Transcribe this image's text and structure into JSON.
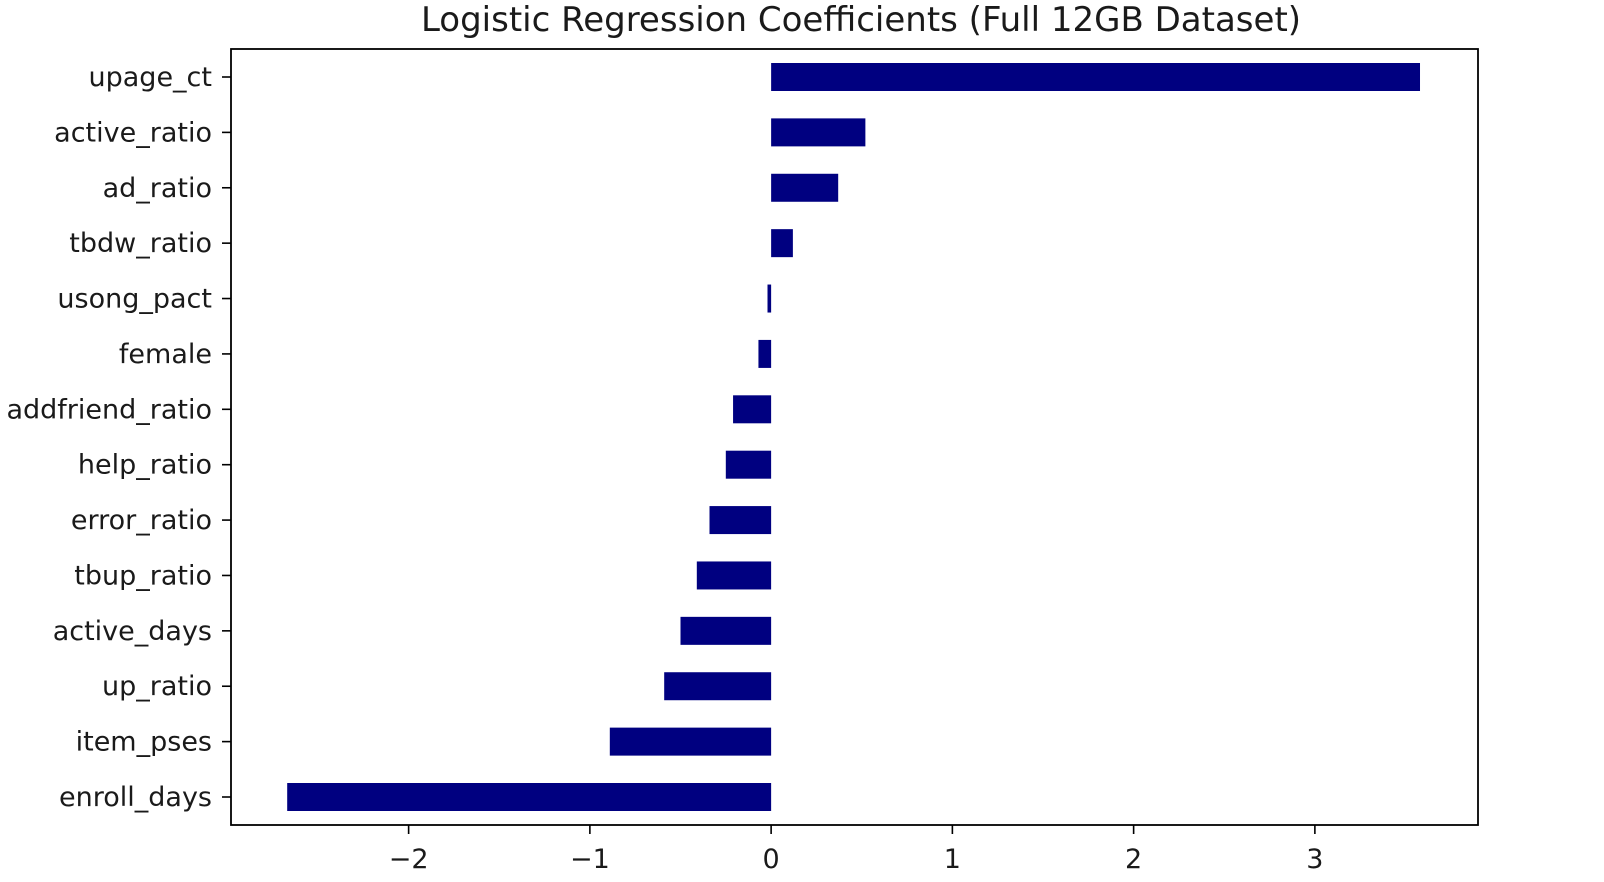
{
  "chart_data": {
    "type": "bar",
    "orientation": "horizontal",
    "title": "Logistic Regression Coefficients (Full 12GB Dataset)",
    "xlabel": "",
    "ylabel": "",
    "categories": [
      "upage_ct",
      "active_ratio",
      "ad_ratio",
      "tbdw_ratio",
      "usong_pact",
      "female",
      "addfriend_ratio",
      "help_ratio",
      "error_ratio",
      "tbup_ratio",
      "active_days",
      "up_ratio",
      "item_pses",
      "enroll_days"
    ],
    "values": [
      3.58,
      0.52,
      0.37,
      0.12,
      -0.02,
      -0.07,
      -0.21,
      -0.25,
      -0.34,
      -0.41,
      -0.5,
      -0.59,
      -0.89,
      -2.67
    ],
    "xlim": [
      -2.98,
      3.9
    ],
    "x_ticks": [
      -2,
      -1,
      0,
      1,
      2,
      3
    ],
    "x_tick_labels": [
      "−2",
      "−1",
      "0",
      "1",
      "2",
      "3"
    ],
    "bar_color": "#000080",
    "grid": false,
    "legend": "none"
  }
}
